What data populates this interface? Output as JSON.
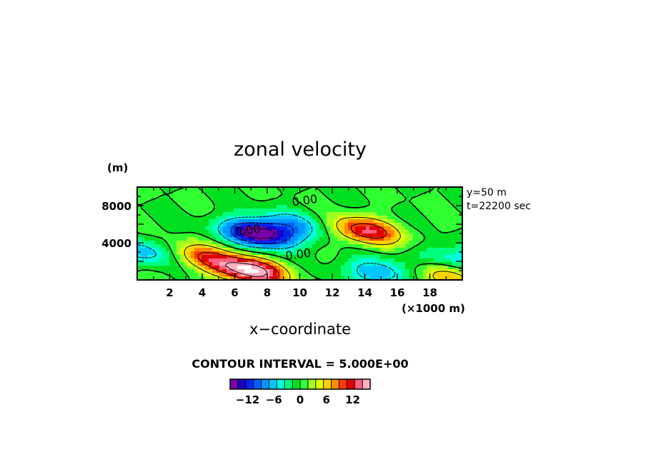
{
  "chart_data": {
    "type": "heatmap",
    "title": "zonal velocity",
    "xlabel": "x−coordinate",
    "x_unit": "(×1000 m)",
    "y_unit": "(m)",
    "xlim": [
      0,
      20
    ],
    "ylim": [
      0,
      10000
    ],
    "x_ticks": [
      "2",
      "4",
      "6",
      "8",
      "10",
      "12",
      "14",
      "16",
      "18"
    ],
    "y_ticks": [
      "4000",
      "8000"
    ],
    "info_lines": [
      "y=50 m",
      "t=22200 sec"
    ],
    "contour_interval_text": "CONTOUR INTERVAL = 5.000E+00",
    "contour_labels": [
      {
        "text": "0.00",
        "x": 10.3,
        "y": 8600
      },
      {
        "text": "0.00",
        "x": 6.8,
        "y": 5400
      },
      {
        "text": "0.00",
        "x": 9.9,
        "y": 2800
      }
    ],
    "colorbar": {
      "tick_labels": [
        "−12",
        "−6",
        "0",
        "6",
        "12"
      ],
      "tick_values": [
        -12,
        -6,
        0,
        6,
        12
      ],
      "range": [
        -16,
        16
      ],
      "colors": [
        "#7a00aa",
        "#1c00c8",
        "#0026ee",
        "#0060ff",
        "#0096ff",
        "#00c8ff",
        "#00ffe0",
        "#00ff80",
        "#00e020",
        "#30ff30",
        "#a0ff20",
        "#e0ff00",
        "#ffd000",
        "#ff8c00",
        "#ff3c00",
        "#e00000",
        "#ff6080",
        "#ffb0c0"
      ]
    },
    "features": [
      {
        "kind": "min",
        "x": 7.5,
        "y": 5000,
        "value": -18
      },
      {
        "kind": "max",
        "x": 7.0,
        "y": 1000,
        "value": 17
      },
      {
        "kind": "max",
        "x": 14.0,
        "y": 5300,
        "value": 13
      },
      {
        "kind": "min",
        "x": 15.0,
        "y": 800,
        "value": -8
      },
      {
        "kind": "min",
        "x": 0.5,
        "y": 3000,
        "value": -7
      },
      {
        "kind": "min",
        "x": 19.5,
        "y": 2000,
        "value": -7
      },
      {
        "kind": "min",
        "x": 10.0,
        "y": 6000,
        "value": -6
      },
      {
        "kind": "max",
        "x": 4.0,
        "y": 2500,
        "value": 9
      },
      {
        "kind": "max",
        "x": 19.0,
        "y": 500,
        "value": 9
      }
    ]
  }
}
